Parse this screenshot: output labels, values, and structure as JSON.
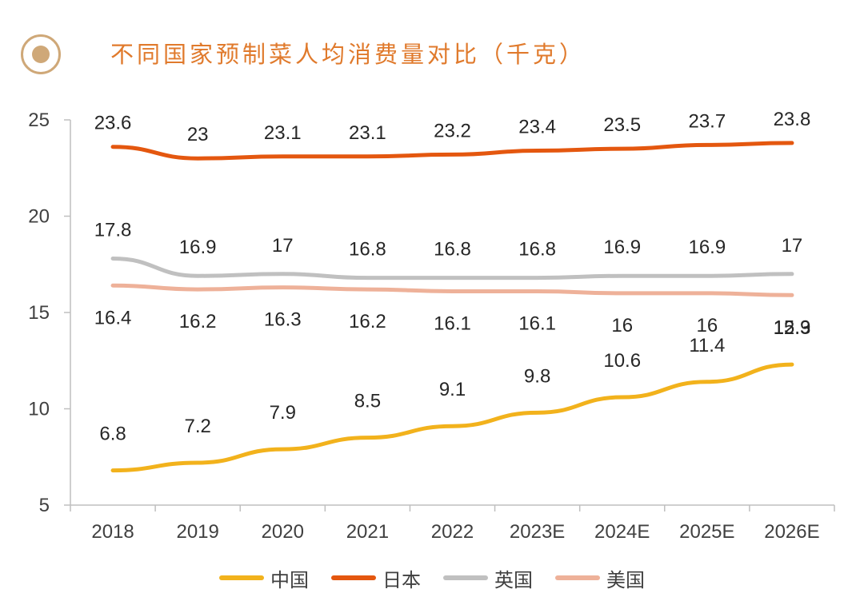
{
  "chart_data": {
    "type": "line",
    "title": "不同国家预制菜人均消费量对比（千克）",
    "categories": [
      "2018",
      "2019",
      "2020",
      "2021",
      "2022",
      "2023E",
      "2024E",
      "2025E",
      "2026E"
    ],
    "ylim": [
      5,
      25
    ],
    "yticks": [
      "5",
      "10",
      "15",
      "20",
      "25"
    ],
    "grid": false,
    "legend_position": "bottom",
    "series": [
      {
        "name": "中国",
        "color": "#f2b21c",
        "values": [
          6.8,
          7.2,
          7.9,
          8.5,
          9.1,
          9.8,
          10.6,
          11.4,
          12.3
        ],
        "labels": [
          "6.8",
          "7.2",
          "7.9",
          "8.5",
          "9.1",
          "9.8",
          "10.6",
          "11.4",
          "12.3"
        ]
      },
      {
        "name": "日本",
        "color": "#e4570f",
        "values": [
          23.6,
          23,
          23.1,
          23.1,
          23.2,
          23.4,
          23.5,
          23.7,
          23.8
        ],
        "labels": [
          "23.6",
          "23",
          "23.1",
          "23.1",
          "23.2",
          "23.4",
          "23.5",
          "23.7",
          "23.8"
        ]
      },
      {
        "name": "英国",
        "color": "#c0c0c0",
        "values": [
          17.8,
          16.9,
          17,
          16.8,
          16.8,
          16.8,
          16.9,
          16.9,
          17
        ],
        "labels": [
          "17.8",
          "16.9",
          "17",
          "16.8",
          "16.8",
          "16.8",
          "16.9",
          "16.9",
          "17"
        ]
      },
      {
        "name": "美国",
        "color": "#eeb199",
        "values": [
          16.4,
          16.2,
          16.3,
          16.2,
          16.1,
          16.1,
          16,
          16,
          15.9
        ],
        "labels": [
          "16.4",
          "16.2",
          "16.3",
          "16.2",
          "16.1",
          "16.1",
          "16",
          "16",
          "15.9"
        ]
      }
    ]
  }
}
